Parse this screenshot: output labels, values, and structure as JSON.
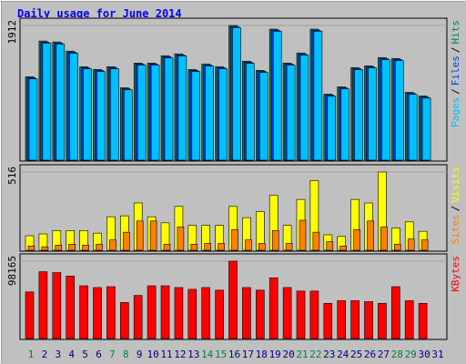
{
  "chart_data": {
    "type": "bar",
    "title": "Daily usage for June 2014",
    "legend_separator": "/",
    "categories": [
      "1",
      "2",
      "3",
      "4",
      "5",
      "6",
      "7",
      "8",
      "9",
      "10",
      "11",
      "12",
      "13",
      "14",
      "15",
      "16",
      "17",
      "18",
      "19",
      "20",
      "21",
      "22",
      "23",
      "24",
      "25",
      "26",
      "27",
      "28",
      "29",
      "30",
      "31"
    ],
    "category_colors": [
      "#008040",
      "#000080",
      "#000080",
      "#000080",
      "#000080",
      "#000080",
      "#008040",
      "#008040",
      "#000080",
      "#000080",
      "#000080",
      "#000080",
      "#000080",
      "#008040",
      "#008040",
      "#000080",
      "#000080",
      "#000080",
      "#000080",
      "#000080",
      "#008040",
      "#008040",
      "#000080",
      "#000080",
      "#000080",
      "#000080",
      "#000080",
      "#008040",
      "#008040",
      "#000080",
      "#000080"
    ],
    "panels": [
      {
        "ylim": [
          0,
          1912
        ],
        "yticks": [
          1912
        ],
        "series": [
          {
            "name": "Hits",
            "color": "#00805c",
            "values": [
              1184,
              1691,
              1678,
              1548,
              1327,
              1288,
              1327,
              1028,
              1379,
              1379,
              1483,
              1509,
              1288,
              1366,
              1327,
              1912,
              1405,
              1275,
              1860,
              1379,
              1522,
              1860,
              937,
              1041,
              1314,
              1340,
              1457,
              1444,
              963,
              911,
              null
            ]
          },
          {
            "name": "Files",
            "color": "#0040ff",
            "values": [
              1169,
              1676,
              1663,
              1533,
              1312,
              1273,
              1312,
              1013,
              1364,
              1364,
              1468,
              1494,
              1273,
              1351,
              1312,
              1897,
              1390,
              1260,
              1845,
              1364,
              1507,
              1845,
              922,
              1026,
              1299,
              1325,
              1442,
              1429,
              948,
              896,
              null
            ]
          },
          {
            "name": "Pages",
            "color": "#00c0ff",
            "values": [
              1154,
              1661,
              1648,
              1518,
              1297,
              1258,
              1297,
              998,
              1349,
              1349,
              1453,
              1479,
              1258,
              1336,
              1297,
              1882,
              1375,
              1245,
              1830,
              1349,
              1492,
              1830,
              907,
              1011,
              1284,
              1310,
              1427,
              1414,
              933,
              881,
              null
            ]
          }
        ]
      },
      {
        "ylim": [
          0,
          516
        ],
        "yticks": [
          516
        ],
        "series": [
          {
            "name": "Visits",
            "color": "#ffff00",
            "values": [
              96,
              108,
              130,
              130,
              130,
              113,
              221,
              227,
              312,
              221,
              181,
              289,
              164,
              164,
              164,
              289,
              215,
              255,
              363,
              164,
              335,
              459,
              102,
              91,
              335,
              312,
              516,
              147,
              187,
              125,
              null
            ]
          },
          {
            "name": "Sites",
            "color": "#ff8000",
            "values": [
              28,
              23,
              34,
              40,
              34,
              40,
              68,
              119,
              193,
              193,
              40,
              153,
              40,
              45,
              45,
              136,
              68,
              45,
              130,
              45,
              198,
              119,
              57,
              28,
              136,
              193,
              153,
              40,
              74,
              68,
              null
            ]
          }
        ]
      },
      {
        "ylim": [
          0,
          98165
        ],
        "yticks": [
          98165
        ],
        "series": [
          {
            "name": "KBytes",
            "color": "#ff0000",
            "values": [
              59122,
              84778,
              83663,
              79201,
              66932,
              64699,
              65815,
              45736,
              54661,
              66932,
              66932,
              64699,
              62469,
              64699,
              61353,
              98165,
              64699,
              61353,
              76970,
              64699,
              60237,
              60237,
              44620,
              47967,
              47967,
              46851,
              44620,
              65815,
              47967,
              44620,
              null
            ]
          }
        ]
      }
    ]
  }
}
